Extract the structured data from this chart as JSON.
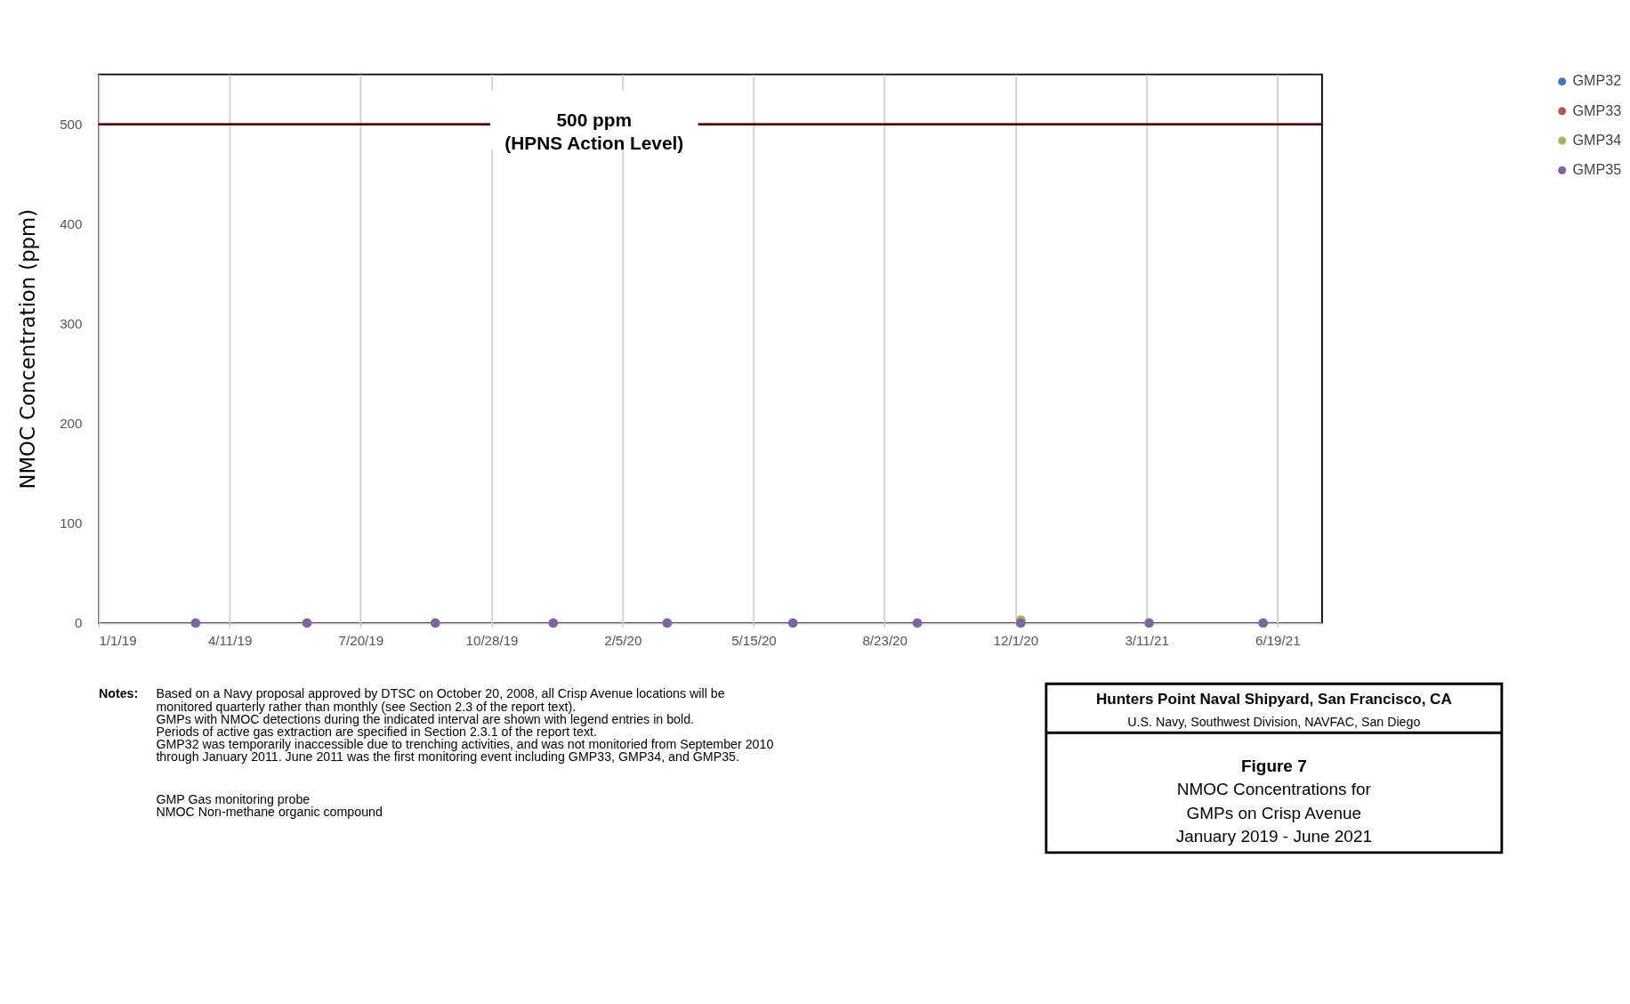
{
  "chart_data": {
    "type": "scatter",
    "title": "Figure 7",
    "subtitle": "NMOC Concentrations for\nGMPs on Crisp Avenue\nJanuary 2019 - June 2021",
    "ylabel": "NMOC Concentration (ppm)",
    "x": [
      "2019-03-16",
      "2019-06-09",
      "2019-09-15",
      "2019-12-14",
      "2020-03-10",
      "2020-06-14",
      "2020-09-17",
      "2020-12-05",
      "2021-03-13",
      "2021-06-08"
    ],
    "series": [
      {
        "name": "GMP32",
        "color": "#4472c4",
        "values": [
          null,
          null,
          null,
          null,
          null,
          null,
          null,
          null,
          null,
          null
        ]
      },
      {
        "name": "GMP33",
        "color": "#c0504d",
        "values": [
          null,
          null,
          null,
          null,
          null,
          null,
          null,
          null,
          null,
          null
        ]
      },
      {
        "name": "GMP34",
        "color": "#9bbb59",
        "values": [
          null,
          null,
          null,
          null,
          null,
          null,
          null,
          3,
          null,
          null
        ]
      },
      {
        "name": "GMP35",
        "color": "#8064a2",
        "values": [
          0,
          0,
          0,
          0,
          0,
          0,
          0,
          0,
          0,
          0
        ]
      }
    ],
    "xlim": [
      "2019-01-01",
      "2021-07-23"
    ],
    "xticks": [
      {
        "value": "2019-01-01",
        "label": "1/1/19"
      },
      {
        "value": "2019-04-11",
        "label": "4/11/19"
      },
      {
        "value": "2019-07-20",
        "label": "7/20/19"
      },
      {
        "value": "2019-10-28",
        "label": "10/28/19"
      },
      {
        "value": "2020-02-05",
        "label": "2/5/20"
      },
      {
        "value": "2020-05-15",
        "label": "5/15/20"
      },
      {
        "value": "2020-08-23",
        "label": "8/23/20"
      },
      {
        "value": "2020-12-01",
        "label": "12/1/20"
      },
      {
        "value": "2021-03-11",
        "label": "3/11/21"
      },
      {
        "value": "2021-06-19",
        "label": "6/19/21"
      }
    ],
    "ylim": [
      0,
      550
    ],
    "yticks": [
      0,
      100,
      200,
      300,
      400,
      500
    ],
    "ref_lines": [
      {
        "axis": "y",
        "value": 500,
        "label": "500 ppm\n(HPNS Action Level)",
        "color": "#5c0a0a"
      }
    ],
    "annotations": [
      "Hunters Point Naval Shipyard, San Francisco, CA",
      "U.S. Navy, Southwest Division, NAVFAC, San Diego",
      "Notes:",
      "Based on a Navy proposal approved by DTSC on October 20, 2008, all Crisp Avenue locations will be\nmonitored quarterly rather than monthly (see Section 2.3 of the report text).\nGMPs with NMOC detections during the indicated interval are shown with legend entries in bold.\nPeriods of active gas extraction are specified in Section 2.3.1 of the report text.\nGMP32 was temporarily inaccessible due to trenching activities, and was not monitoried from September 2010\nthrough January 2011. June 2011 was the first monitoring event including GMP33, GMP34, and GMP35.",
      "GMP      Gas monitoring probe\nNMOC   Non-methane organic compound"
    ],
    "grid": "x",
    "legend": "right",
    "marker": "circle"
  }
}
